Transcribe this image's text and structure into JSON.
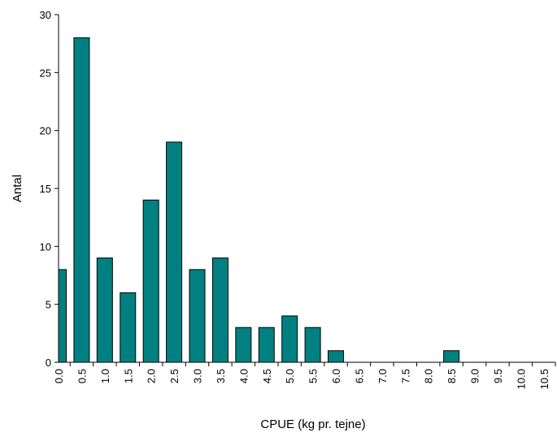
{
  "chart_data": {
    "type": "bar",
    "title": "",
    "xlabel": "CPUE (kg pr. tejne)",
    "ylabel": "Antal",
    "categories": [
      "0.0",
      "0.5",
      "1.0",
      "1.5",
      "2.0",
      "2.5",
      "3.0",
      "3.5",
      "4.0",
      "4.5",
      "5.0",
      "5.5",
      "6.0",
      "6.5",
      "7.0",
      "7.5",
      "8.0",
      "8.5",
      "9.0",
      "9.5",
      "10.0",
      "10.5"
    ],
    "values": [
      8,
      28,
      9,
      6,
      14,
      19,
      8,
      9,
      3,
      3,
      4,
      3,
      1,
      0,
      0,
      0,
      0,
      1,
      0,
      0,
      0,
      0
    ],
    "ylim": [
      0,
      30
    ],
    "yticks": [
      "0",
      "5",
      "10",
      "15",
      "20",
      "25",
      "30"
    ],
    "grid": false,
    "legend": "none",
    "bar_color": "#008080",
    "bar_edge_color": "#000000"
  }
}
